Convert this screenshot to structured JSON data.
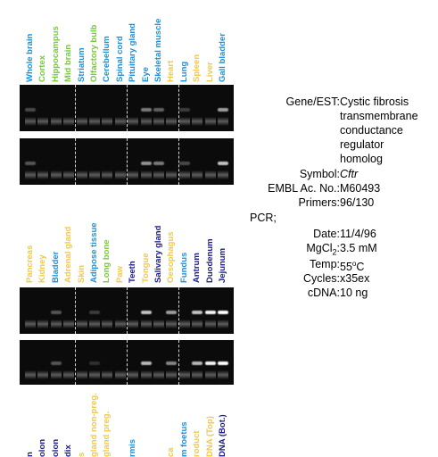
{
  "top_panel": {
    "lanes": [
      {
        "label": "Whole brain",
        "color": "#1e8fd6"
      },
      {
        "label": "Cortex",
        "color": "#78c83c"
      },
      {
        "label": "Hippocampus",
        "color": "#78c83c"
      },
      {
        "label": "Mid brain",
        "color": "#78c83c"
      },
      {
        "label": "Striatum",
        "color": "#1e8fd6"
      },
      {
        "label": "Olfactory bulb",
        "color": "#78c83c"
      },
      {
        "label": "Cerebellum",
        "color": "#1e8fd6"
      },
      {
        "label": "Spinal cord",
        "color": "#1e8fd6"
      },
      {
        "label": "Pituitary gland",
        "color": "#1e8fd6"
      },
      {
        "label": "Eye",
        "color": "#1e8fd6"
      },
      {
        "label": "Skeletal muscle",
        "color": "#1e8fd6"
      },
      {
        "label": "Heart",
        "color": "#f0c84a"
      },
      {
        "label": "Lung",
        "color": "#1e8fd6"
      },
      {
        "label": "Spleen",
        "color": "#f0c84a"
      },
      {
        "label": "Liver",
        "color": "#f0c84a"
      },
      {
        "label": "Gall bladder",
        "color": "#1e8fd6"
      }
    ],
    "gel_upper_bands": [
      0.25,
      0,
      0,
      0,
      0,
      0,
      0,
      0,
      0,
      0.45,
      0.35,
      0,
      0.2,
      0,
      0,
      0.6
    ],
    "gel_lower_bands": [
      0.3,
      0,
      0,
      0,
      0,
      0,
      0,
      0,
      0,
      0.55,
      0.45,
      0,
      0.25,
      0,
      0,
      0.75
    ]
  },
  "middle_panel": {
    "lanes": [
      {
        "label": "Pancreas",
        "color": "#f0c84a"
      },
      {
        "label": "Kidney",
        "color": "#f0c84a"
      },
      {
        "label": "Bladder",
        "color": "#1e8fd6"
      },
      {
        "label": "Adrenal gland",
        "color": "#f0c84a"
      },
      {
        "label": "Skin",
        "color": "#f0c84a"
      },
      {
        "label": "Adipose tissue",
        "color": "#1e8fd6"
      },
      {
        "label": "Long bone",
        "color": "#78c83c"
      },
      {
        "label": "Paw",
        "color": "#f0c84a"
      },
      {
        "label": "Teeth",
        "color": "#1a1a8c"
      },
      {
        "label": "Tongue",
        "color": "#f0c84a"
      },
      {
        "label": "Salivary gland",
        "color": "#1a1a8c"
      },
      {
        "label": "Oesophagus",
        "color": "#f0c84a"
      },
      {
        "label": "Fundus",
        "color": "#1e8fd6"
      },
      {
        "label": "Antrum",
        "color": "#1a1a8c"
      },
      {
        "label": "Duodenum",
        "color": "#1a1a8c"
      },
      {
        "label": "Jejunum",
        "color": "#1a1a8c"
      }
    ],
    "gel_upper_bands": [
      0,
      0,
      0.3,
      0,
      0,
      0.2,
      0,
      0,
      0,
      0.75,
      0,
      0.6,
      0,
      0.75,
      0.95,
      1.0
    ],
    "gel_lower_bands": [
      0,
      0,
      0.3,
      0,
      0,
      0.15,
      0,
      0,
      0,
      0.7,
      0,
      0.5,
      0,
      0.7,
      0.95,
      1.0
    ]
  },
  "bottom_panel": {
    "lanes": [
      {
        "label": "n",
        "color": "#1a1a8c"
      },
      {
        "label": "olon",
        "color": "#1a1a8c"
      },
      {
        "label": "olon",
        "color": "#1a1a8c"
      },
      {
        "label": "dix",
        "color": "#1a1a8c"
      },
      {
        "label": "s",
        "color": "#f0c84a"
      },
      {
        "label": "gland non-preg.",
        "color": "#f0c84a"
      },
      {
        "label": "gland preg.",
        "color": "#f0c84a"
      },
      {
        "label": "",
        "color": "#ffffff"
      },
      {
        "label": "rmis",
        "color": "#1e8fd6"
      },
      {
        "label": "",
        "color": "#ffffff"
      },
      {
        "label": "",
        "color": "#ffffff"
      },
      {
        "label": "ca",
        "color": "#f0c84a"
      },
      {
        "label": "m foetus",
        "color": "#1e8fd6"
      },
      {
        "label": "roduct",
        "color": "#f0c84a"
      },
      {
        "label": "DNA (Top)",
        "color": "#f0c84a"
      },
      {
        "label": "DNA (Bot.)",
        "color": "#1a1a8c"
      }
    ]
  },
  "gene_info": {
    "gene_est_label": "Gene/EST:",
    "gene_est_lines": [
      "Cystic fibrosis",
      "transmembrane",
      "conductance",
      "regulator",
      "homolog"
    ],
    "symbol_label": "Symbol:",
    "symbol_value": "Cftr",
    "embl_label": "EMBL Ac. No.:",
    "embl_value": "M60493",
    "primers_label": "Primers:",
    "primers_value": "96/130",
    "pcr_label": "PCR;",
    "date_label": "Date:",
    "date_value": "11/4/96",
    "mgcl2_label": "MgCl",
    "mgcl2_sub": "2",
    "mgcl2_colon": ":",
    "mgcl2_value": "3.5 mM",
    "temp_label": "Temp:",
    "temp_value_num": "55",
    "temp_value_deg": "o",
    "temp_value_unit": "C",
    "cycles_label": "Cycles:",
    "cycles_value": "x35ex",
    "cdna_label": "cDNA:",
    "cdna_value": "10 ng"
  }
}
